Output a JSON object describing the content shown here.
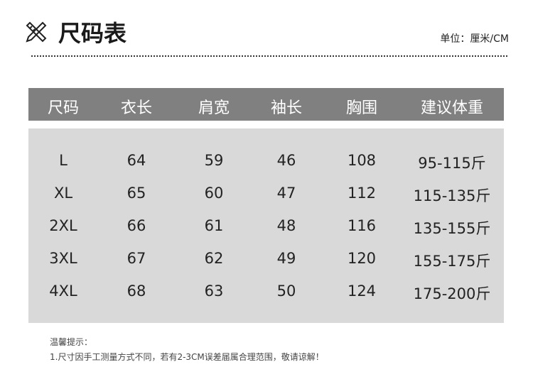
{
  "header": {
    "title": "尺码表",
    "icon": "pencil-ruler-icon",
    "unit": "单位：厘米/CM"
  },
  "table": {
    "columns": [
      "尺码",
      "衣长",
      "肩宽",
      "袖长",
      "胸围",
      "建议体重"
    ],
    "rows": [
      [
        "L",
        "64",
        "59",
        "46",
        "108",
        "95-115斤"
      ],
      [
        "XL",
        "65",
        "60",
        "47",
        "112",
        "115-135斤"
      ],
      [
        "2XL",
        "66",
        "61",
        "48",
        "116",
        "135-155斤"
      ],
      [
        "3XL",
        "67",
        "62",
        "49",
        "120",
        "155-175斤"
      ],
      [
        "4XL",
        "68",
        "63",
        "50",
        "124",
        "175-200斤"
      ]
    ]
  },
  "notes": {
    "heading": "温馨提示：",
    "line1": "1.尺寸因手工测量方式不同，若有2-3CM误差届属合理范围，敬请谅解！"
  },
  "colors": {
    "header_bg": "#808080",
    "body_bg": "#d9d9d9"
  }
}
